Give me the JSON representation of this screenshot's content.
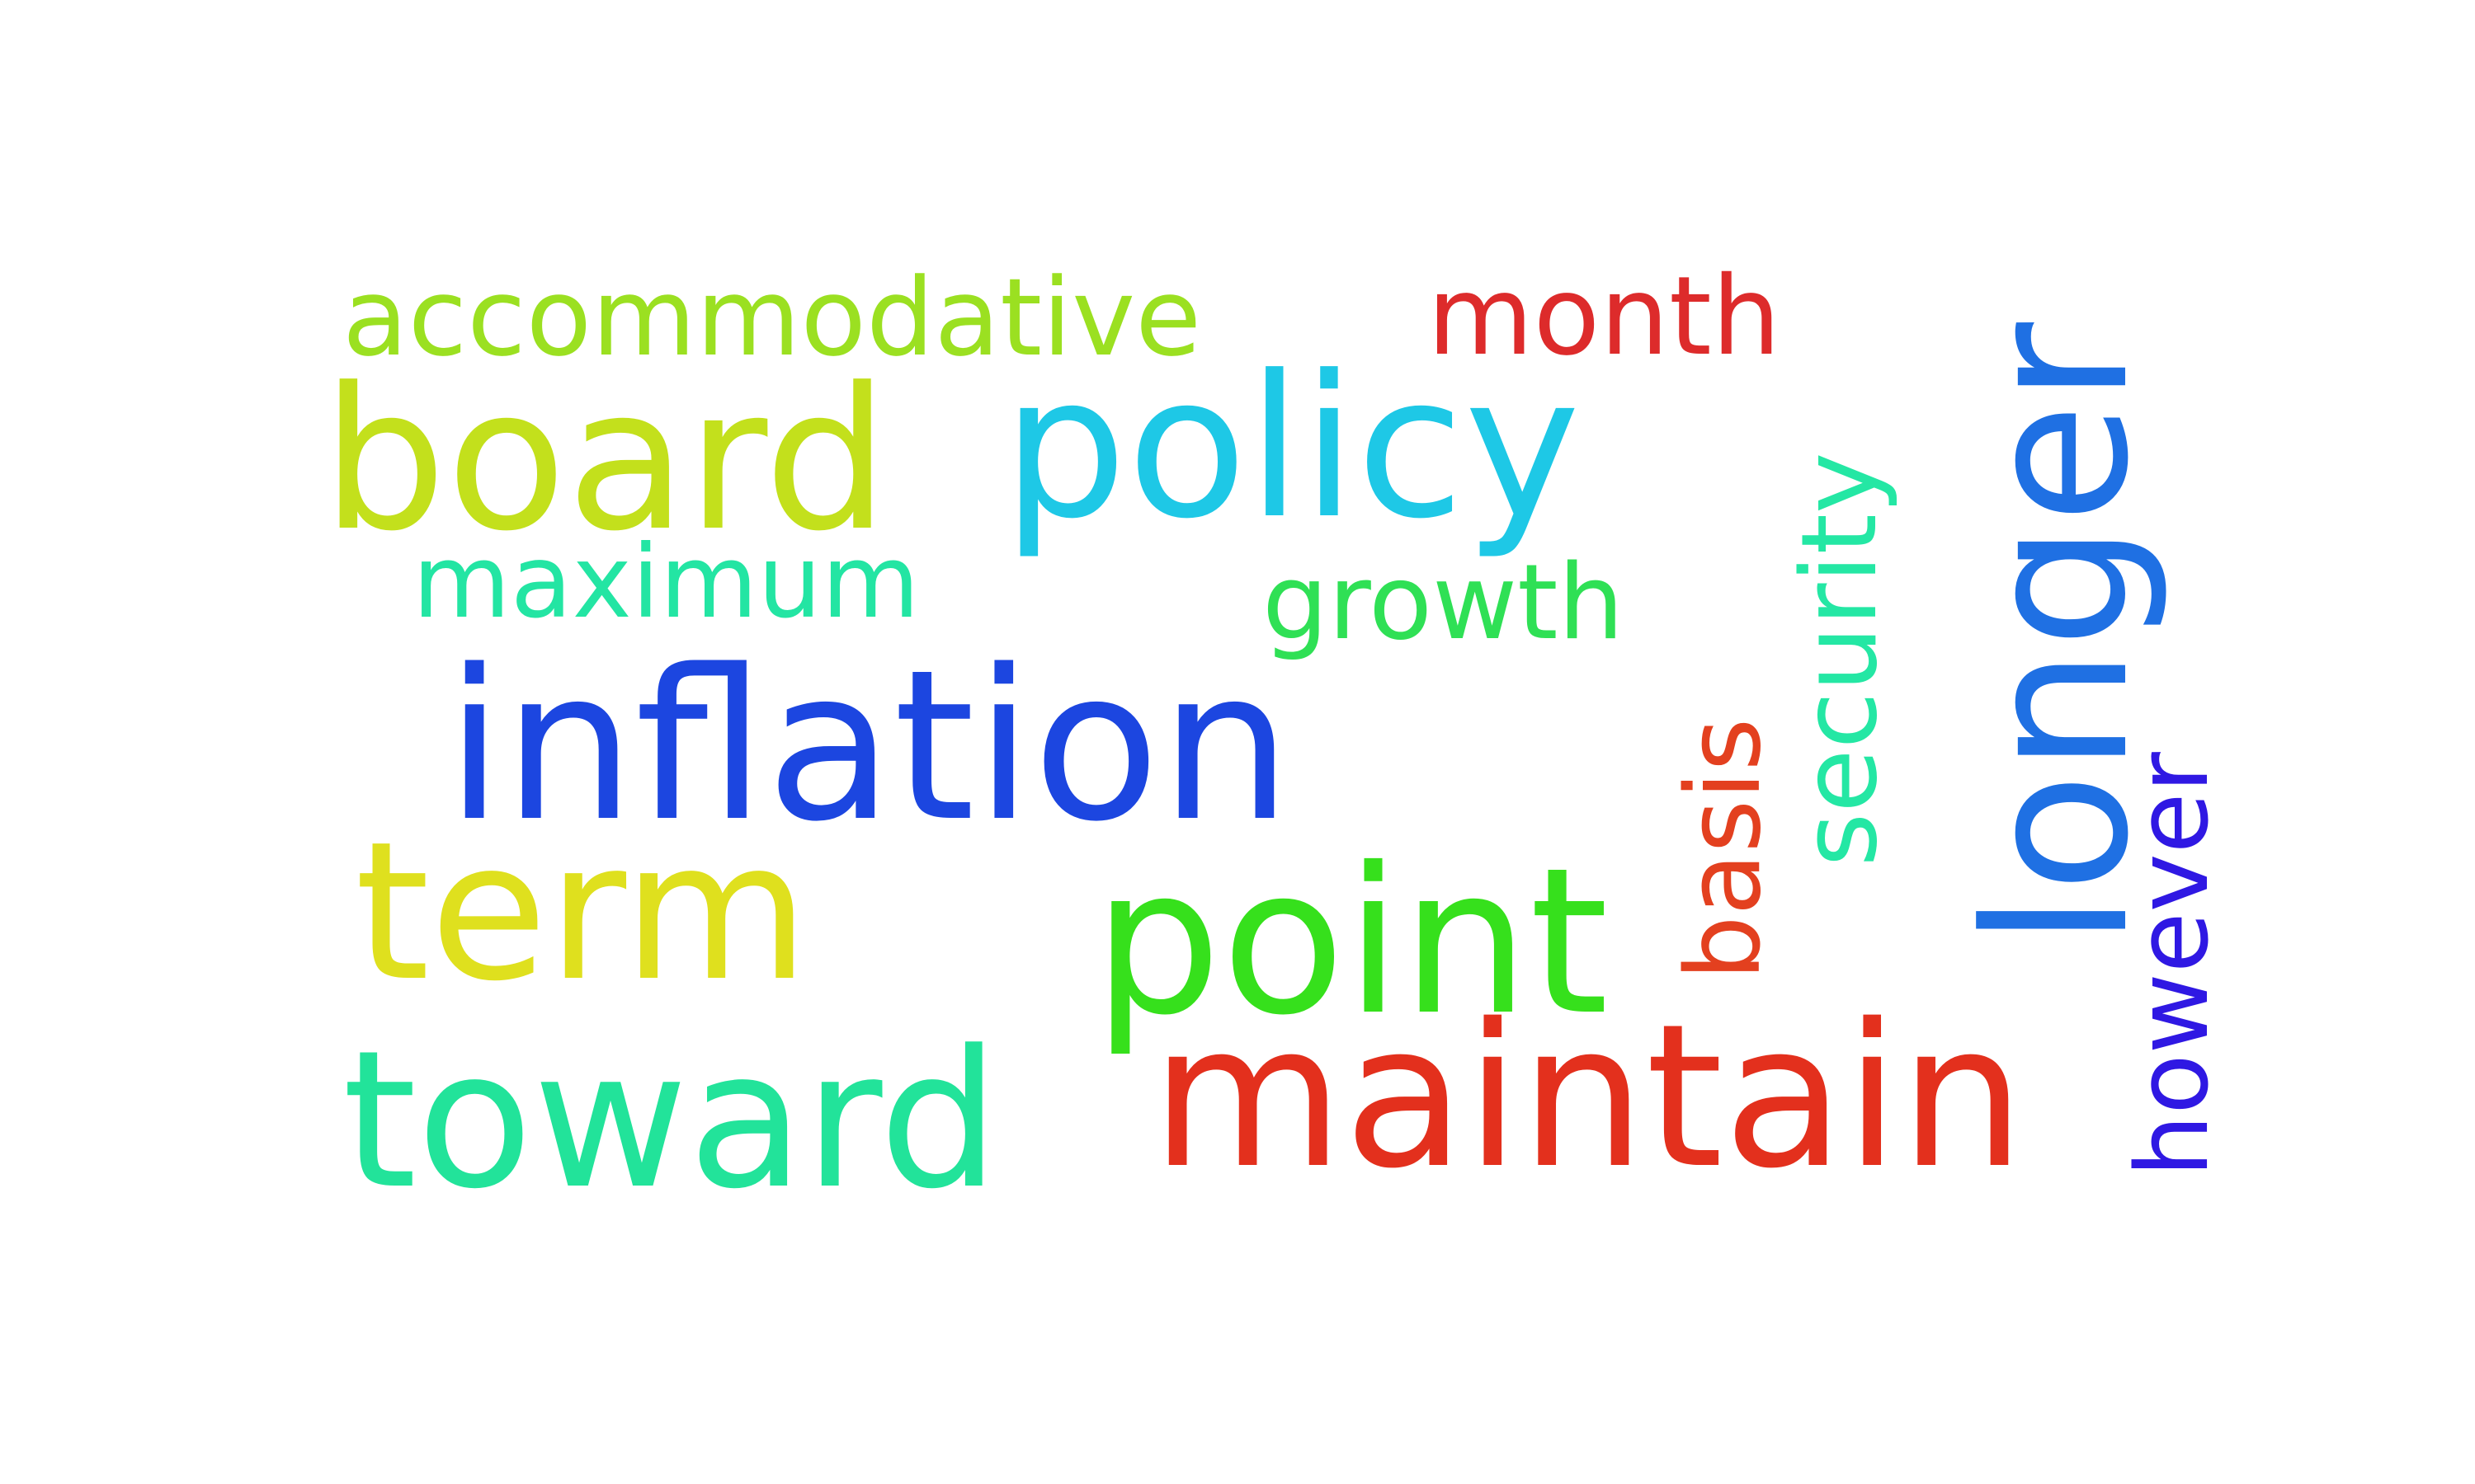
{
  "cloud": {
    "words": {
      "accommodative": {
        "text": "accommodative",
        "color": "#9be021"
      },
      "month": {
        "text": "month",
        "color": "#dd2b2b"
      },
      "board": {
        "text": "board",
        "color": "#c3e01c"
      },
      "policy": {
        "text": "policy",
        "color": "#1ec8e6"
      },
      "maximum": {
        "text": "maximum",
        "color": "#23e5a3"
      },
      "growth": {
        "text": "growth",
        "color": "#2fe055"
      },
      "inflation": {
        "text": "inflation",
        "color": "#1c46e0"
      },
      "term": {
        "text": "term",
        "color": "#dfe01e"
      },
      "point": {
        "text": "point",
        "color": "#36e01c"
      },
      "toward": {
        "text": "toward",
        "color": "#22e39a"
      },
      "maintain": {
        "text": "maintain",
        "color": "#e3301d"
      },
      "security": {
        "text": "security",
        "color": "#24e7a4"
      },
      "basis": {
        "text": "basis",
        "color": "#e3401f"
      },
      "longer": {
        "text": "longer",
        "color": "#1f70e3"
      },
      "however": {
        "text": "however",
        "color": "#2f18e3"
      }
    }
  }
}
